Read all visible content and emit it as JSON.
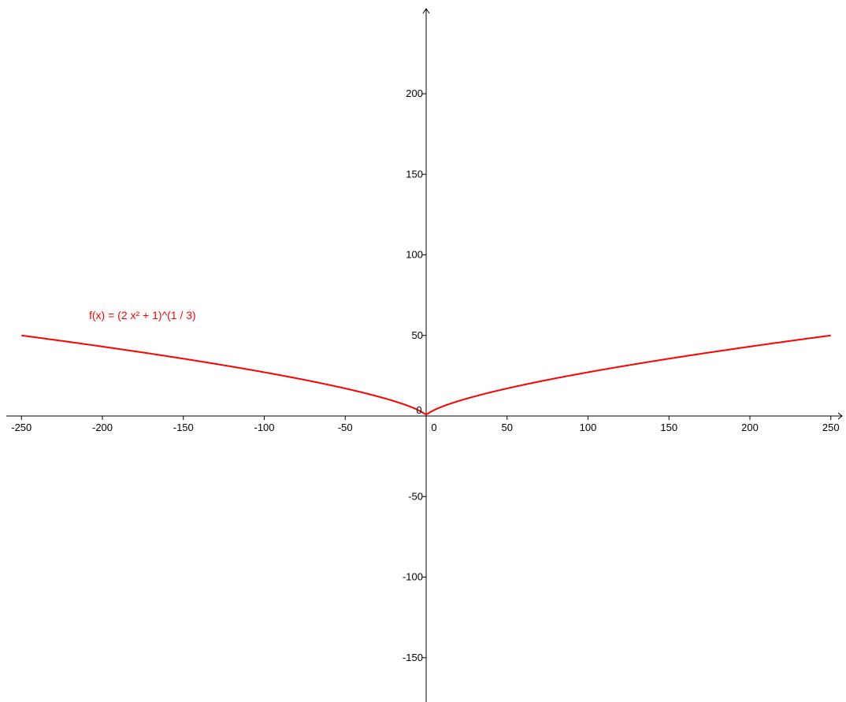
{
  "chart_data": {
    "type": "line",
    "title": "",
    "xlabel": "",
    "ylabel": "",
    "xlim": [
      -255,
      262
    ],
    "ylim": [
      -175,
      253
    ],
    "grid": false,
    "x_ticks": [
      -250,
      -200,
      -150,
      -100,
      -50,
      0,
      50,
      100,
      150,
      200,
      250
    ],
    "y_ticks": [
      -150,
      -100,
      -50,
      50,
      100,
      150,
      200
    ],
    "x_tick_labels": [
      "-250",
      "-200",
      "-150",
      "-100",
      "-50",
      "0",
      "50",
      "100",
      "150",
      "200",
      "250"
    ],
    "y_tick_labels": [
      "-150",
      "-100",
      "-50",
      "50",
      "100",
      "150",
      "200"
    ],
    "series": [
      {
        "name": "f(x) = (2 x² + 1)^(1 / 3)",
        "color": "#ff0000",
        "domain": [
          -250,
          250
        ],
        "x": [
          -250,
          -200,
          -150,
          -100,
          -50,
          -25,
          -10,
          -5,
          -2,
          -1,
          0,
          1,
          2,
          5,
          10,
          25,
          50,
          100,
          150,
          200,
          250
        ],
        "y": [
          50.0,
          43.1,
          35.6,
          27.1,
          17.1,
          10.8,
          5.9,
          3.7,
          2.1,
          1.4,
          1.0,
          1.4,
          2.1,
          3.7,
          5.9,
          10.8,
          17.1,
          27.1,
          35.6,
          43.1,
          50.0
        ]
      }
    ]
  }
}
